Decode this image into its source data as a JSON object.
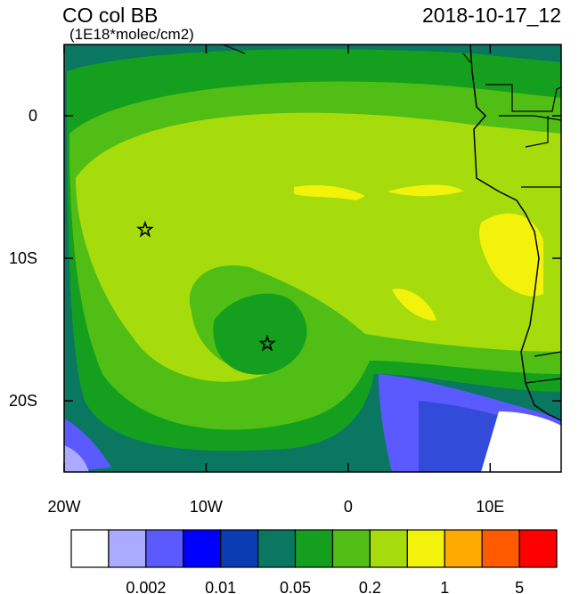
{
  "header": {
    "title": "CO col BB",
    "units": "(1E18*molec/cm2)",
    "date": "2018-10-17_12"
  },
  "map": {
    "lon_range": [
      -20,
      15
    ],
    "lat_range": [
      -25,
      5
    ],
    "lon_ticks": [
      {
        "value": -20,
        "label": "20W"
      },
      {
        "value": -10,
        "label": "10W"
      },
      {
        "value": 0,
        "label": "0"
      },
      {
        "value": 10,
        "label": "10E"
      }
    ],
    "lat_ticks": [
      {
        "value": 0,
        "label": "0"
      },
      {
        "value": -10,
        "label": "10S"
      },
      {
        "value": -20,
        "label": "20S"
      }
    ],
    "markers": [
      {
        "lon": -14.3,
        "lat": -8
      },
      {
        "lon": -5.7,
        "lat": -16
      }
    ]
  },
  "colorbar": {
    "colors": [
      "#ffffff",
      "#aaaaff",
      "#5a5aff",
      "#0000ff",
      "#0a3cb4",
      "#0a7860",
      "#14a01e",
      "#50be14",
      "#a6dc0c",
      "#f2f20a",
      "#ffaa00",
      "#ff5a00",
      "#ff0000"
    ],
    "labels": [
      0.002,
      0.01,
      0.05,
      0.2,
      1,
      5
    ]
  }
}
